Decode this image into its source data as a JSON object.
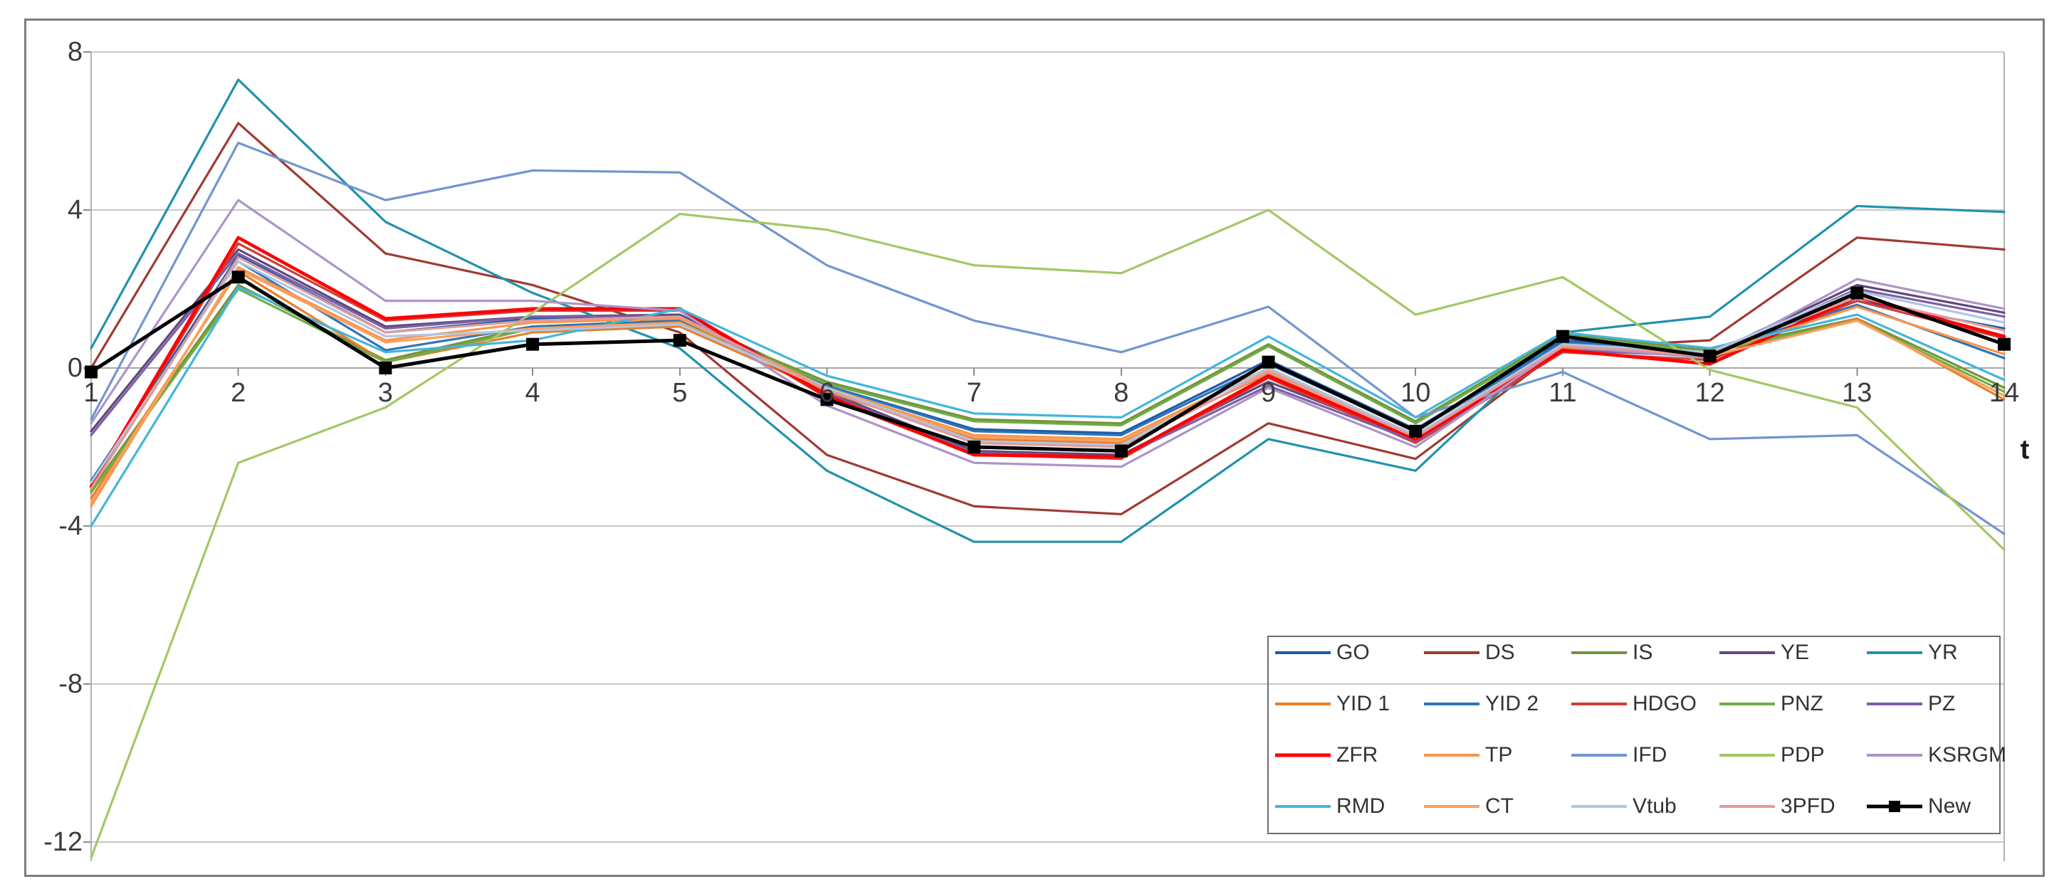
{
  "chart_data": {
    "type": "line",
    "title": "",
    "xlabel": "t",
    "ylabel": "",
    "x": [
      1,
      2,
      3,
      4,
      5,
      6,
      7,
      8,
      9,
      10,
      11,
      12,
      13,
      14
    ],
    "x_tick_labels": [
      "1",
      "2",
      "3",
      "4",
      "5",
      "6",
      "7",
      "8",
      "9",
      "10",
      "11",
      "12",
      "13",
      "14"
    ],
    "ylim": [
      -12,
      8
    ],
    "yticks": [
      8,
      4,
      0,
      -4,
      -8,
      -12
    ],
    "grid": true,
    "x_axis_at_zero": true,
    "legend_position": "inside-bottom-right",
    "legend_rows": 4,
    "legend_cols": 5,
    "series": [
      {
        "name": "GO",
        "color": "#1e5ca8",
        "width": 3.2,
        "marker": null,
        "values": [
          -2.9,
          2.85,
          0.9,
          1.25,
          1.35,
          -0.45,
          -1.55,
          -1.65,
          0.2,
          -1.55,
          0.7,
          0.45,
          1.7,
          1.0
        ]
      },
      {
        "name": "DS",
        "color": "#9e3b33",
        "width": 3.2,
        "marker": null,
        "values": [
          0.0,
          6.2,
          2.9,
          2.1,
          0.9,
          -2.2,
          -3.5,
          -3.7,
          -1.4,
          -2.3,
          0.5,
          0.7,
          3.3,
          3.0
        ]
      },
      {
        "name": "IS",
        "color": "#76933c",
        "width": 3.2,
        "marker": null,
        "values": [
          -3.1,
          2.1,
          0.2,
          1.05,
          1.2,
          -0.35,
          -1.3,
          -1.4,
          0.6,
          -1.35,
          0.85,
          0.45,
          1.25,
          -0.5
        ]
      },
      {
        "name": "YE",
        "color": "#5f497a",
        "width": 3.2,
        "marker": null,
        "values": [
          -1.6,
          3.0,
          1.05,
          1.3,
          1.35,
          -0.6,
          -2.1,
          -2.2,
          -0.35,
          -1.8,
          0.5,
          0.35,
          2.1,
          1.4
        ]
      },
      {
        "name": "YR",
        "color": "#2192ac",
        "width": 3.2,
        "marker": null,
        "values": [
          0.5,
          7.3,
          3.7,
          1.9,
          0.5,
          -2.6,
          -4.4,
          -4.4,
          -1.8,
          -2.6,
          0.9,
          1.3,
          4.1,
          3.95
        ]
      },
      {
        "name": "YID 1",
        "color": "#e87e2b",
        "width": 3.2,
        "marker": null,
        "values": [
          -3.3,
          2.45,
          0.15,
          0.9,
          1.05,
          -0.6,
          -1.8,
          -1.9,
          -0.15,
          -1.8,
          0.5,
          0.3,
          1.25,
          -0.8
        ]
      },
      {
        "name": "YID 2",
        "color": "#2e75b6",
        "width": 3.2,
        "marker": null,
        "values": [
          -2.85,
          2.7,
          0.45,
          1.05,
          1.2,
          -0.45,
          -1.6,
          -1.7,
          0.1,
          -1.6,
          0.65,
          0.4,
          1.6,
          0.25
        ]
      },
      {
        "name": "HDGO",
        "color": "#cf3d38",
        "width": 3.2,
        "marker": null,
        "values": [
          -3.0,
          3.15,
          1.2,
          1.45,
          1.45,
          -0.75,
          -2.2,
          -2.3,
          -0.25,
          -1.9,
          0.4,
          0.2,
          1.7,
          0.75
        ]
      },
      {
        "name": "PNZ",
        "color": "#70ad47",
        "width": 3.2,
        "marker": null,
        "values": [
          -3.15,
          2.0,
          0.15,
          1.0,
          1.15,
          -0.4,
          -1.35,
          -1.45,
          0.55,
          -1.4,
          0.8,
          0.4,
          1.2,
          -0.6
        ]
      },
      {
        "name": "PZ",
        "color": "#7d5fa7",
        "width": 3.2,
        "marker": null,
        "values": [
          -1.7,
          2.9,
          1.0,
          1.3,
          1.3,
          -0.65,
          -2.15,
          -2.25,
          -0.45,
          -1.85,
          0.45,
          0.3,
          2.0,
          1.3
        ]
      },
      {
        "name": "ZFR",
        "color": "#fe0000",
        "width": 4.6,
        "marker": null,
        "values": [
          -3.0,
          3.3,
          1.25,
          1.5,
          1.5,
          -0.7,
          -2.2,
          -2.25,
          -0.2,
          -1.8,
          0.45,
          0.1,
          1.8,
          0.8
        ]
      },
      {
        "name": "TP",
        "color": "#f9964b",
        "width": 3.2,
        "marker": null,
        "values": [
          -3.5,
          2.55,
          0.7,
          1.15,
          1.25,
          -0.5,
          -1.7,
          -1.8,
          0.0,
          -1.7,
          0.6,
          0.35,
          1.55,
          0.35
        ]
      },
      {
        "name": "IFD",
        "color": "#7295cf",
        "width": 3.2,
        "marker": null,
        "values": [
          -1.3,
          5.7,
          4.25,
          5.0,
          4.95,
          2.6,
          1.2,
          0.4,
          1.55,
          -1.25,
          -0.1,
          -1.8,
          -1.7,
          -4.2
        ]
      },
      {
        "name": "PDP",
        "color": "#a4c763",
        "width": 3.2,
        "marker": null,
        "values": [
          -12.4,
          -2.4,
          -1.0,
          1.4,
          3.9,
          3.5,
          2.6,
          2.4,
          4.0,
          1.35,
          2.3,
          -0.05,
          -1.0,
          -4.6
        ]
      },
      {
        "name": "KSRGM",
        "color": "#ad94c8",
        "width": 3.2,
        "marker": null,
        "values": [
          -1.4,
          4.25,
          1.7,
          1.7,
          1.45,
          -0.95,
          -2.4,
          -2.5,
          -0.5,
          -2.0,
          0.55,
          0.25,
          2.25,
          1.5
        ]
      },
      {
        "name": "RMD",
        "color": "#44b5d9",
        "width": 3.2,
        "marker": null,
        "values": [
          -4.0,
          2.05,
          0.4,
          0.7,
          1.5,
          -0.2,
          -1.15,
          -1.25,
          0.8,
          -1.25,
          0.9,
          0.5,
          1.35,
          -0.3
        ]
      },
      {
        "name": "CT",
        "color": "#faa05f",
        "width": 3.2,
        "marker": null,
        "values": [
          -3.4,
          2.5,
          0.65,
          1.0,
          1.15,
          -0.55,
          -1.75,
          -1.85,
          -0.05,
          -1.7,
          0.6,
          0.3,
          1.2,
          -0.7
        ]
      },
      {
        "name": "Vtub",
        "color": "#aec6e6",
        "width": 3.2,
        "marker": null,
        "values": [
          -2.9,
          2.7,
          0.8,
          0.95,
          1.1,
          -0.5,
          -1.85,
          -1.95,
          0.0,
          -1.7,
          0.6,
          0.4,
          1.95,
          1.15
        ]
      },
      {
        "name": "3PFD",
        "color": "#e09c9b",
        "width": 3.2,
        "marker": null,
        "values": [
          -3.05,
          2.8,
          0.9,
          1.2,
          1.3,
          -0.55,
          -1.9,
          -2.0,
          -0.1,
          -1.75,
          0.55,
          0.35,
          1.8,
          0.95
        ]
      },
      {
        "name": "New",
        "color": "#000000",
        "width": 5.0,
        "marker": "square",
        "values": [
          -0.1,
          2.3,
          0.0,
          0.6,
          0.7,
          -0.8,
          -2.0,
          -2.1,
          0.15,
          -1.6,
          0.8,
          0.3,
          1.9,
          0.6
        ]
      }
    ]
  }
}
